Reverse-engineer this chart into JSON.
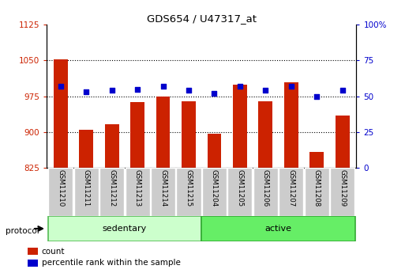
{
  "title": "GDS654 / U47317_at",
  "samples": [
    "GSM11210",
    "GSM11211",
    "GSM11212",
    "GSM11213",
    "GSM11214",
    "GSM11215",
    "GSM11204",
    "GSM11205",
    "GSM11206",
    "GSM11207",
    "GSM11208",
    "GSM11209"
  ],
  "counts": [
    1052,
    905,
    917,
    962,
    975,
    965,
    896,
    1000,
    965,
    1005,
    858,
    935
  ],
  "percentiles": [
    57,
    53,
    54,
    55,
    57,
    54,
    52,
    57,
    54,
    57,
    50,
    54
  ],
  "ylim_left": [
    825,
    1125
  ],
  "ylim_right": [
    0,
    100
  ],
  "yticks_left": [
    825,
    900,
    975,
    1050,
    1125
  ],
  "yticks_right": [
    0,
    25,
    50,
    75,
    100
  ],
  "bar_color": "#cc2200",
  "dot_color": "#0000cc",
  "sedentary_color": "#ccffcc",
  "active_color": "#66ee66",
  "left_axis_color": "#cc2200",
  "right_axis_color": "#0000cc",
  "protocol_label": "protocol",
  "group_names": [
    "sedentary",
    "active"
  ],
  "group_sizes": [
    6,
    6
  ],
  "legend_items": [
    "count",
    "percentile rank within the sample"
  ],
  "tick_bg_color": "#cccccc",
  "grid_color": "#000000"
}
